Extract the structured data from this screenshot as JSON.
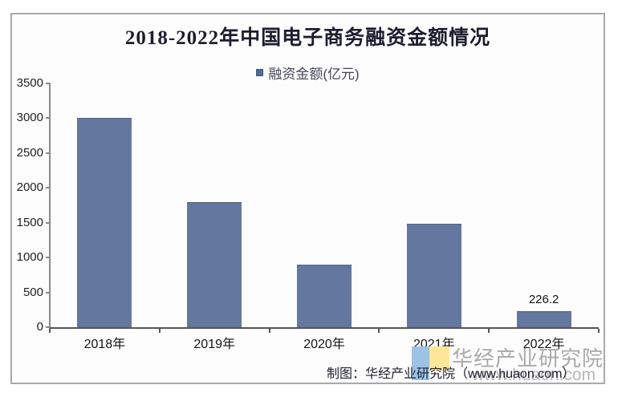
{
  "chart_data": {
    "type": "bar",
    "title": "2018-2022年中国电子商务融资金额情况",
    "legend": [
      {
        "label": "融资金额(亿元)",
        "color": "#54699b"
      }
    ],
    "legend_position": "top-center",
    "categories": [
      "2018年",
      "2019年",
      "2020年",
      "2021年",
      "2022年"
    ],
    "series": [
      {
        "name": "融资金额(亿元)",
        "values": [
          3000,
          1800,
          900,
          1480,
          226.2
        ]
      }
    ],
    "data_labels": [
      "",
      "",
      "",
      "",
      "226.2"
    ],
    "xlabel": "",
    "ylabel": "",
    "ylim": [
      0,
      3500
    ],
    "yticks": [
      0,
      500,
      1000,
      1500,
      2000,
      2500,
      3000,
      3500
    ],
    "grid": false,
    "bar_color": "#64779e"
  },
  "footer": {
    "credit": "制图：华经产业研究院（www.huaon.com）"
  },
  "watermark": {
    "brand": "华经产业研究院",
    "url": "www.huaon.com",
    "logo_colors": [
      "#9cc2e5",
      "#ffe699"
    ]
  }
}
